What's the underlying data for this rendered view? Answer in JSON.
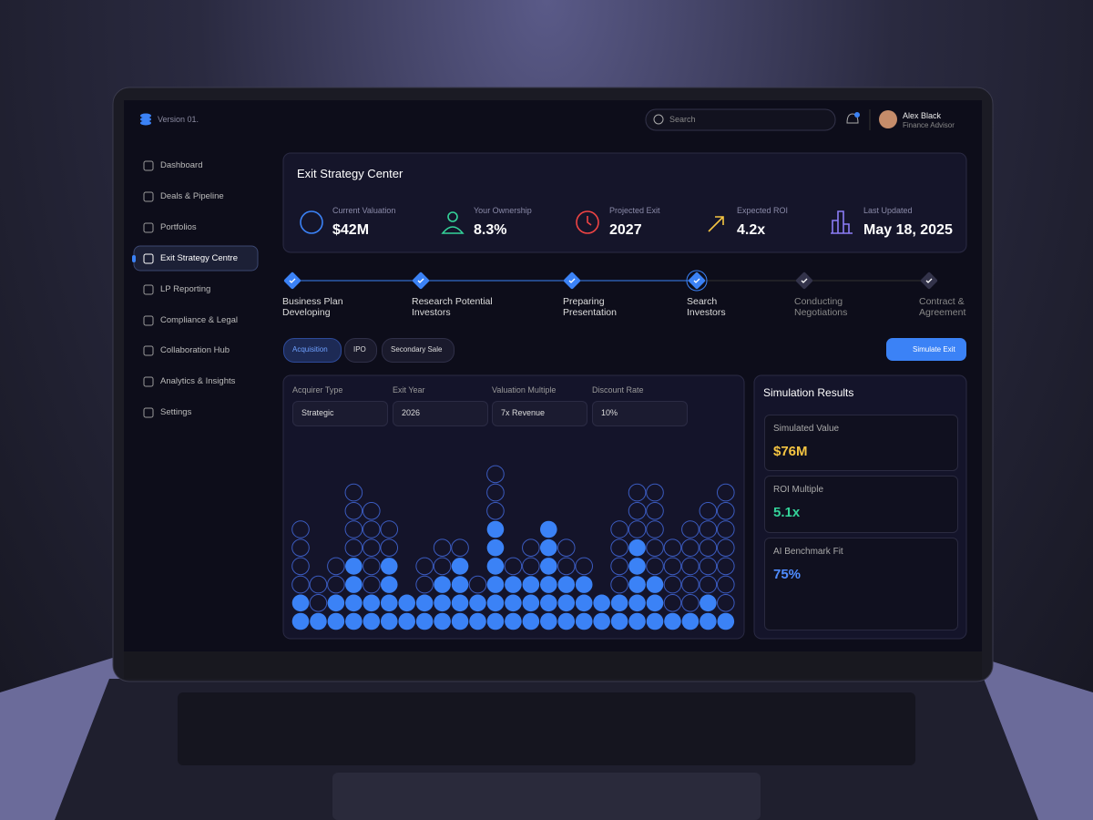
{
  "brand": "Version 01.",
  "search": "Search",
  "user": {
    "name": "Alex Black",
    "role": "Finance Advisor"
  },
  "nav": [
    "Dashboard",
    "Deals & Pipeline",
    "Portfolios",
    "Exit Strategy Centre",
    "LP Reporting",
    "Compliance & Legal",
    "Collaboration Hub",
    "Analytics & Insights",
    "Settings"
  ],
  "header": {
    "title": "Exit Strategy Center"
  },
  "stats": [
    {
      "label": "Current Valuation",
      "value": "$42M"
    },
    {
      "label": "Your Ownership",
      "value": "8.3%"
    },
    {
      "label": "Projected Exit",
      "value": "2027"
    },
    {
      "label": "Expected ROI",
      "value": "4.2x"
    },
    {
      "label": "Last Updated",
      "value": "May 18, 2025"
    }
  ],
  "steps": [
    [
      "Business Plan",
      "Developing"
    ],
    [
      "Research Potential",
      "Investors"
    ],
    [
      "Preparing",
      "Presentation"
    ],
    [
      "Search",
      "Investors"
    ],
    [
      "Conducting",
      "Negotiations"
    ],
    [
      "Contract &",
      "Agreement"
    ]
  ],
  "tabs": [
    "Acquisition",
    "IPO",
    "Secondary Sale"
  ],
  "button": "Simulate Exit",
  "filters": [
    {
      "label": "Acquirer Type",
      "value": "Strategic"
    },
    {
      "label": "Exit Year",
      "value": "2026"
    },
    {
      "label": "Valuation Multiple",
      "value": "7x Revenue"
    },
    {
      "label": "Discount Rate",
      "value": "10%"
    }
  ],
  "dot_chart": {
    "filled": [
      2,
      1,
      2,
      4,
      2,
      4,
      2,
      2,
      3,
      4,
      2,
      6,
      3,
      3,
      6,
      3,
      3,
      2,
      2,
      5,
      3,
      1,
      1,
      2,
      1
    ],
    "total": [
      6,
      3,
      4,
      8,
      7,
      6,
      2,
      4,
      5,
      5,
      3,
      9,
      4,
      5,
      6,
      5,
      4,
      2,
      6,
      8,
      8,
      5,
      6,
      7,
      8
    ]
  },
  "results": {
    "title": "Simulation Results",
    "cards": [
      {
        "label": "Simulated Value",
        "value": "$76M"
      },
      {
        "label": "ROI Multiple",
        "value": "5.1x"
      },
      {
        "label": "AI Benchmark Fit",
        "value": "75%"
      }
    ]
  }
}
